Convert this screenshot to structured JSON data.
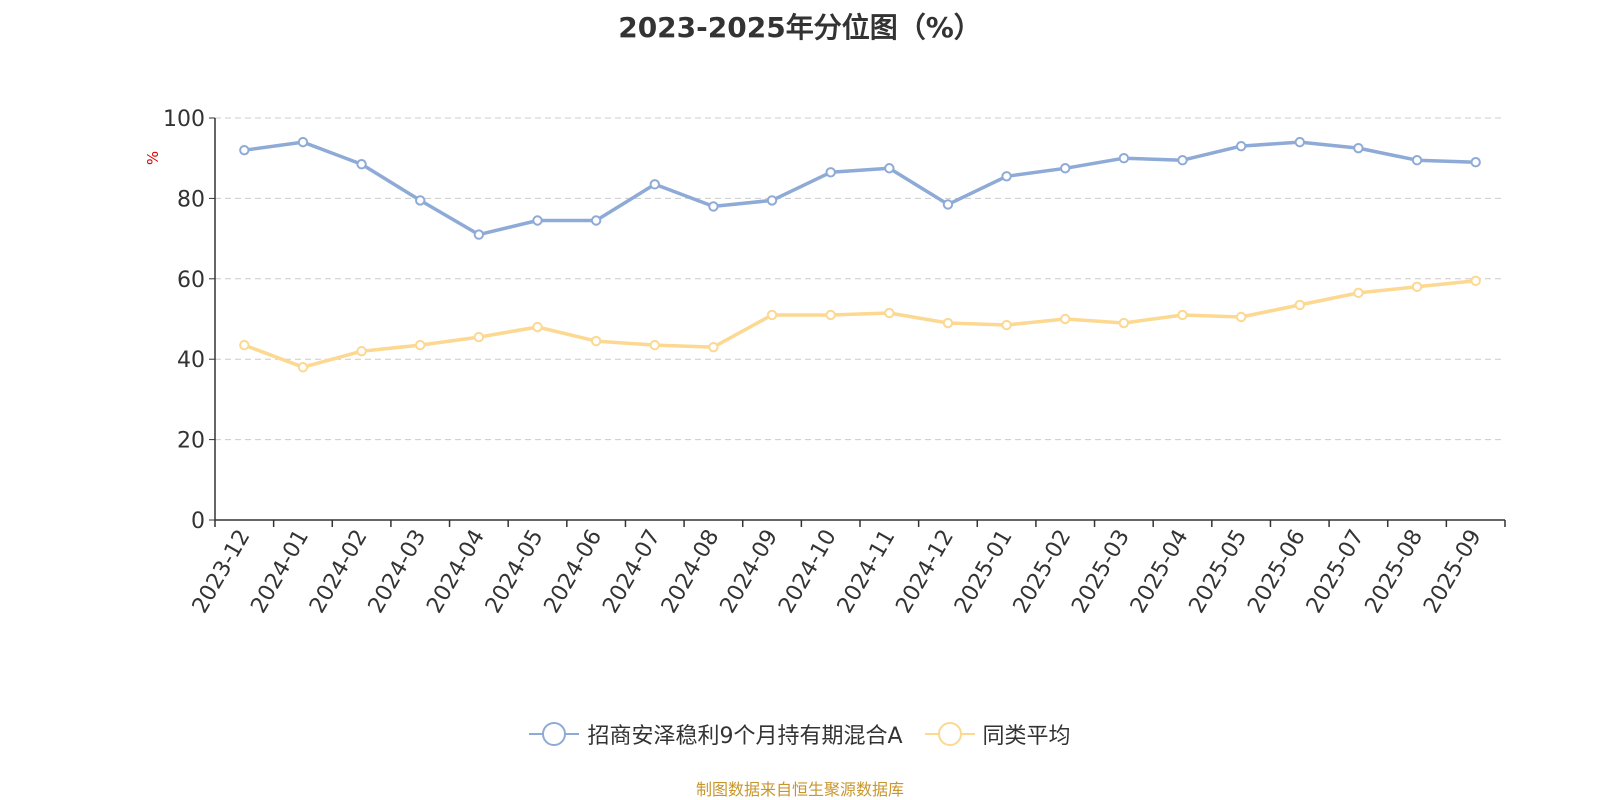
{
  "title": "2023-2025年分位图（%）",
  "source": "制图数据来自恒生聚源数据库",
  "colors": {
    "fund": "#8eaad6",
    "avg": "#fcd891",
    "ylabel": "#e00000",
    "grid": "#cccccc",
    "axis": "#333333"
  },
  "chart_data": {
    "type": "line",
    "title": "2023-2025年分位图（%）",
    "ylabel": "%",
    "xlabel": "",
    "ylim": [
      0,
      100
    ],
    "yticks": [
      0,
      20,
      40,
      60,
      80,
      100
    ],
    "grid": true,
    "legend_position": "bottom",
    "categories": [
      "2023-12",
      "2024-01",
      "2024-02",
      "2024-03",
      "2024-04",
      "2024-05",
      "2024-06",
      "2024-07",
      "2024-08",
      "2024-09",
      "2024-10",
      "2024-11",
      "2024-12",
      "2025-01",
      "2025-02",
      "2025-03",
      "2025-04",
      "2025-05",
      "2025-06",
      "2025-07",
      "2025-08",
      "2025-09"
    ],
    "series": [
      {
        "name": "招商安泽稳利9个月持有期混合A",
        "color": "#8eaad6",
        "values": [
          92.0,
          94.0,
          88.5,
          79.5,
          71.0,
          74.5,
          74.5,
          83.5,
          78.0,
          79.5,
          86.5,
          87.5,
          78.5,
          85.5,
          87.5,
          90.0,
          89.5,
          93.0,
          94.0,
          92.5,
          89.5,
          89.0
        ]
      },
      {
        "name": "同类平均",
        "color": "#fcd891",
        "values": [
          43.5,
          38.0,
          42.0,
          43.5,
          45.5,
          48.0,
          44.5,
          43.5,
          43.0,
          51.0,
          51.0,
          51.5,
          49.0,
          48.5,
          50.0,
          49.0,
          51.0,
          50.5,
          53.5,
          56.5,
          58.0,
          59.5
        ]
      }
    ]
  }
}
